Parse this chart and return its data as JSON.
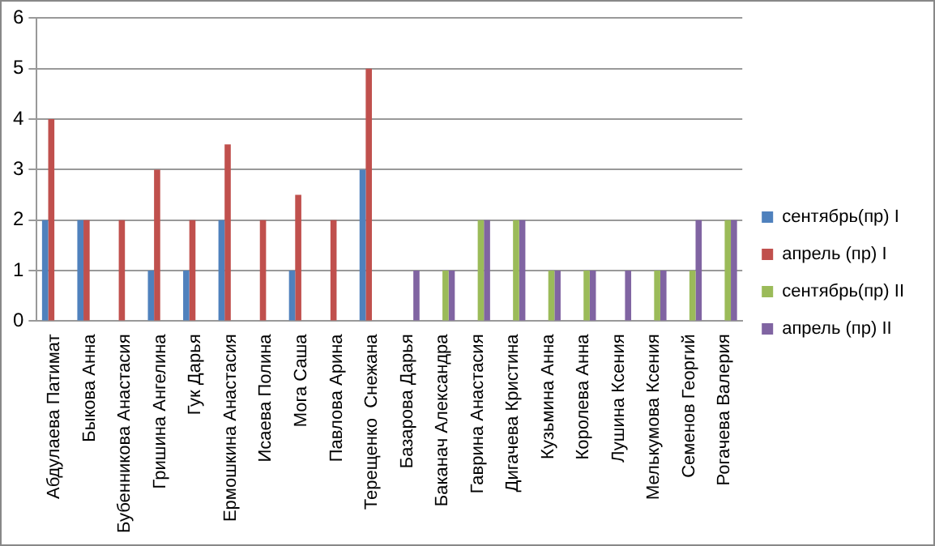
{
  "chart_data": {
    "type": "bar",
    "categories": [
      "Абдулаева Патимат",
      "Быкова Анна",
      "Бубенникова Анастасия",
      "Гришина Ангелина",
      "Гук Дарья",
      "Ермошкина Анастасия",
      "Исаева Полина",
      "Мога Саша",
      "Павлова Арина",
      "Терещенко  Снежана",
      "Базарова Дарья",
      "Баканач Александра",
      "Гаврина Анастасия",
      "Дигачева Кристина",
      "Кузьмина Анна",
      "Королева Анна",
      "Лушина Ксения",
      "Мелькумова Ксения",
      "Семенов Георгий",
      "Рогачева Валерия"
    ],
    "series": [
      {
        "name": "сентябрь(пр) I",
        "color": "#4f81bd",
        "values": [
          2,
          2,
          0,
          1,
          1,
          2,
          0,
          1,
          0,
          3,
          null,
          null,
          null,
          null,
          null,
          null,
          null,
          null,
          null,
          null
        ]
      },
      {
        "name": "апрель (пр) I",
        "color": "#c0504d",
        "values": [
          4,
          2,
          2,
          3,
          2,
          3.5,
          2,
          2.5,
          2,
          5,
          null,
          null,
          null,
          null,
          null,
          null,
          null,
          null,
          null,
          null
        ]
      },
      {
        "name": "сентябрь(пр) II",
        "color": "#9bbb59",
        "values": [
          null,
          null,
          null,
          null,
          null,
          null,
          null,
          null,
          null,
          null,
          0,
          1,
          2,
          2,
          1,
          1,
          0,
          1,
          1,
          2
        ]
      },
      {
        "name": "апрель (пр) II",
        "color": "#8064a2",
        "values": [
          null,
          null,
          null,
          null,
          null,
          null,
          null,
          null,
          null,
          null,
          1,
          1,
          2,
          2,
          1,
          1,
          1,
          1,
          2,
          2
        ]
      }
    ],
    "ylim": [
      0,
      6
    ],
    "yticks": [
      0,
      1,
      2,
      3,
      4,
      5,
      6
    ],
    "grid": "y",
    "legend": "right"
  }
}
